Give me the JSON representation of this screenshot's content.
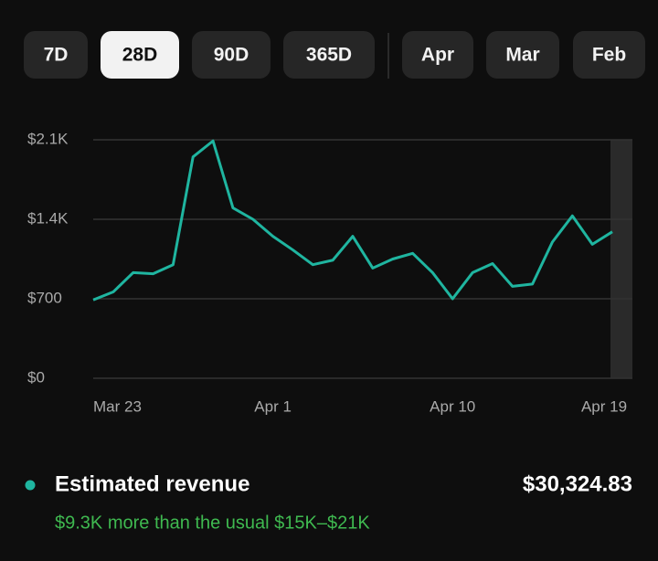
{
  "tabs": [
    "7D",
    "28D",
    "90D",
    "365D"
  ],
  "month_tabs": [
    "Apr",
    "Mar",
    "Feb"
  ],
  "selected_tab": 1,
  "chart_data": {
    "type": "line",
    "categories": [
      "Mar 23",
      null,
      null,
      null,
      null,
      null,
      null,
      null,
      null,
      "Apr 1",
      null,
      null,
      null,
      null,
      null,
      null,
      null,
      null,
      "Apr 10",
      null,
      null,
      null,
      null,
      null,
      null,
      null,
      "Apr 19"
    ],
    "series": [
      {
        "name": "Estimated revenue",
        "color": "#1fb5a0",
        "values": [
          690,
          760,
          930,
          920,
          1000,
          1950,
          2090,
          1500,
          1400,
          1250,
          1130,
          1000,
          1040,
          1250,
          970,
          1050,
          1100,
          930,
          700,
          930,
          1010,
          810,
          830,
          1200,
          1430,
          1180,
          1290
        ]
      }
    ],
    "ylim": [
      0,
      2100
    ],
    "yticks": [
      {
        "value": 0,
        "label": "$0"
      },
      {
        "value": 700,
        "label": "$700"
      },
      {
        "value": 1400,
        "label": "$1.4K"
      },
      {
        "value": 2100,
        "label": "$2.1K"
      }
    ],
    "grid": true
  },
  "summary": {
    "label": "Estimated revenue",
    "total": "$30,324.83",
    "note": "$9.3K more than the usual $15K–$21K"
  }
}
